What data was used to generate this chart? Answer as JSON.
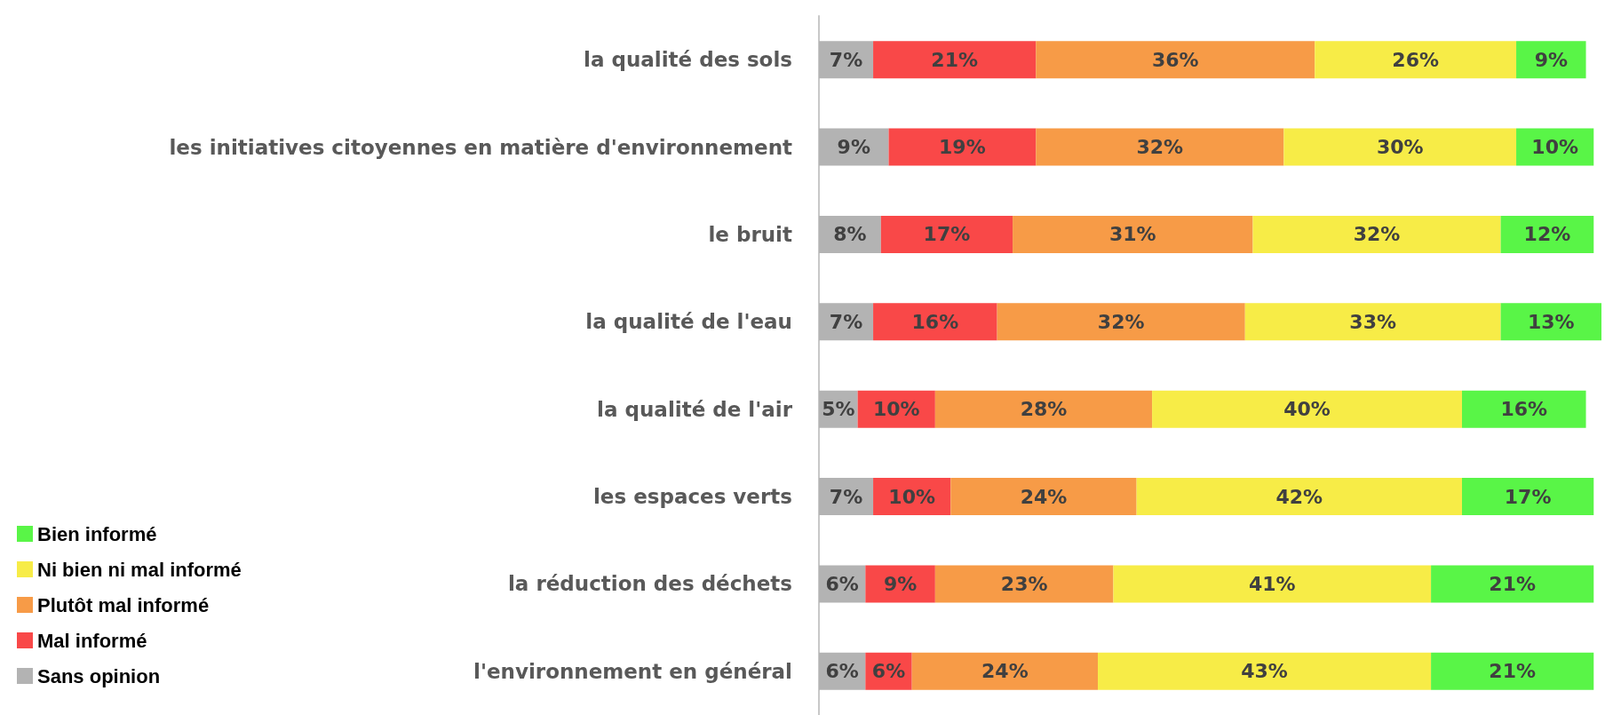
{
  "chart_data": {
    "type": "bar",
    "orientation": "horizontal",
    "stacked": true,
    "legend": "bottom left",
    "categories": [
      "la qualité des sols",
      "les initiatives citoyennes en matière d'environnement",
      "le bruit",
      "la qualité de l'eau",
      "la qualité de l'air",
      "les espaces verts",
      "la réduction des déchets",
      "l'environnement en général"
    ],
    "series": [
      {
        "name": "Sans opinion",
        "color": "#b3b3b3",
        "values": [
          7,
          9,
          8,
          7,
          5,
          7,
          6,
          6
        ],
        "value_labels": [
          "7%",
          "9%",
          "8%",
          "7%",
          "5%",
          "7%",
          "6%",
          "6%"
        ]
      },
      {
        "name": "Mal informé",
        "color": "#f94848",
        "values": [
          21,
          19,
          17,
          16,
          10,
          10,
          9,
          6
        ],
        "value_labels": [
          "21%",
          "19%",
          "17%",
          "16%",
          "10%",
          "10%",
          "9%",
          "6%"
        ]
      },
      {
        "name": "Plutôt mal informé",
        "color": "#f79b47",
        "values": [
          36,
          32,
          31,
          32,
          28,
          24,
          23,
          24
        ],
        "value_labels": [
          "36%",
          "32%",
          "31%",
          "32%",
          "28%",
          "24%",
          "23%",
          "24%"
        ]
      },
      {
        "name": "Ni bien ni mal informé",
        "color": "#f7ec47",
        "values": [
          26,
          30,
          32,
          33,
          40,
          42,
          41,
          43
        ],
        "value_labels": [
          "26%",
          "30%",
          "32%",
          "33%",
          "40%",
          "42%",
          "41%",
          "43%"
        ]
      },
      {
        "name": "Bien informé",
        "color": "#59f547",
        "values": [
          9,
          10,
          12,
          13,
          16,
          17,
          21,
          21
        ],
        "value_labels": [
          "9%",
          "10%",
          "12%",
          "13%",
          "16%",
          "17%",
          "21%",
          "21%"
        ]
      }
    ]
  }
}
